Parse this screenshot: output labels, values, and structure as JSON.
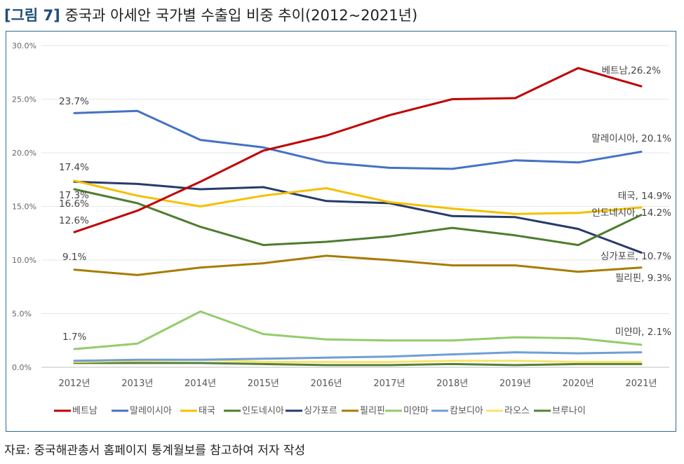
{
  "figure": {
    "tag": "[그림 7]",
    "title": "중국과 아세안 국가별 수출입 비중 추이(2012~2021년)",
    "source": "자료: 중국해관총서 홈페이지 통계월보를 참고하여 저자 작성"
  },
  "chart_data": {
    "type": "line",
    "title": "",
    "xlabel": "",
    "ylabel": "",
    "x": [
      "2012년",
      "2013년",
      "2014년",
      "2015년",
      "2016년",
      "2017년",
      "2018년",
      "2019년",
      "2020년",
      "2021년"
    ],
    "yticks": [
      "0.0%",
      "5.0%",
      "10.0%",
      "15.0%",
      "20.0%",
      "25.0%",
      "30.0%"
    ],
    "ylim": [
      0,
      30
    ],
    "grid": true,
    "legend_position": "bottom",
    "series": [
      {
        "name": "베트남",
        "color": "#c00000",
        "values": [
          12.6,
          14.6,
          17.3,
          20.2,
          21.6,
          23.5,
          25.0,
          25.1,
          27.9,
          26.2
        ],
        "end_label": "베트남,26.2%"
      },
      {
        "name": "말레이시아",
        "color": "#4472c4",
        "values": [
          23.7,
          23.9,
          21.2,
          20.5,
          19.1,
          18.6,
          18.5,
          19.3,
          19.1,
          20.1
        ],
        "start_label": "23.7%",
        "end_label": "말레이시아, 20.1%"
      },
      {
        "name": "태국",
        "color": "#f5c000",
        "values": [
          17.4,
          16.0,
          15.0,
          16.0,
          16.7,
          15.4,
          14.8,
          14.3,
          14.4,
          14.9
        ],
        "start_label": "17.4%",
        "end_label": "태국, 14.9%"
      },
      {
        "name": "인도네시아",
        "color": "#4e7c2e",
        "values": [
          16.6,
          15.3,
          13.1,
          11.4,
          11.7,
          12.2,
          13.0,
          12.3,
          11.4,
          14.2
        ],
        "start_label": "16.6%",
        "end_label": "인도네시아, 14.2%"
      },
      {
        "name": "싱가포르",
        "color": "#263a6b",
        "values": [
          17.3,
          17.1,
          16.6,
          16.8,
          15.5,
          15.3,
          14.1,
          14.0,
          12.9,
          10.7
        ],
        "start_label": "17.3%",
        "end_label": "싱가포르, 10.7%"
      },
      {
        "name": "필리핀",
        "color": "#a87b00",
        "values": [
          9.1,
          8.6,
          9.3,
          9.7,
          10.4,
          10.0,
          9.5,
          9.5,
          8.9,
          9.3
        ],
        "start_label": "9.1%",
        "end_label": "필리핀, 9.3%"
      },
      {
        "name": "미얀마",
        "color": "#92cc6a",
        "values": [
          1.7,
          2.2,
          5.2,
          3.1,
          2.6,
          2.5,
          2.5,
          2.8,
          2.7,
          2.1
        ],
        "start_label": "1.7%",
        "end_label": "미얀마, 2.1%"
      },
      {
        "name": "캄보디아",
        "color": "#6f9fd6",
        "values": [
          0.6,
          0.7,
          0.7,
          0.8,
          0.9,
          1.0,
          1.2,
          1.4,
          1.3,
          1.4
        ]
      },
      {
        "name": "라오스",
        "color": "#fbe36a",
        "values": [
          0.5,
          0.6,
          0.7,
          0.5,
          0.5,
          0.5,
          0.6,
          0.6,
          0.5,
          0.5
        ]
      },
      {
        "name": "브루나이",
        "color": "#55803a",
        "values": [
          0.4,
          0.4,
          0.4,
          0.3,
          0.2,
          0.2,
          0.3,
          0.2,
          0.3,
          0.3
        ]
      }
    ]
  }
}
